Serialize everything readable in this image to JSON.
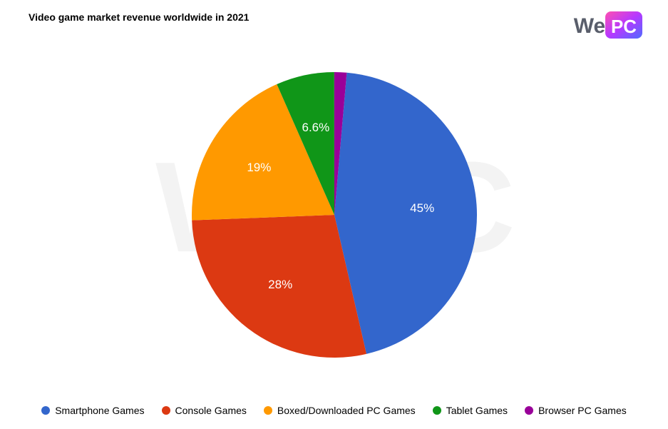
{
  "title": "Video game market revenue worldwide in 2021",
  "logo": {
    "text_we": "We",
    "text_pc": "PC",
    "gradient_start": "#ff4fb1",
    "gradient_mid": "#b638ff",
    "gradient_end": "#4f6bff",
    "text_color": "#595e6b"
  },
  "watermark": "WePC",
  "chart": {
    "type": "pie",
    "background_color": "#ffffff",
    "slices": [
      {
        "label": "Smartphone Games",
        "value": 45,
        "display": "45%",
        "color": "#3366cc"
      },
      {
        "label": "Console Games",
        "value": 28,
        "display": "28%",
        "color": "#dc3912"
      },
      {
        "label": "Boxed/Downloaded PC Games",
        "value": 19,
        "display": "19%",
        "color": "#ff9900"
      },
      {
        "label": "Tablet Games",
        "value": 6.6,
        "display": "6.6%",
        "color": "#109618"
      },
      {
        "label": "Browser PC Games",
        "value": 1.4,
        "display": "",
        "color": "#990099"
      }
    ],
    "label_fontsize": 17,
    "label_color": "#ffffff",
    "start_angle_deg": -85
  },
  "legend": {
    "fontsize": 14,
    "text_color": "#000000",
    "items": [
      {
        "label": "Smartphone Games",
        "color": "#3366cc"
      },
      {
        "label": "Console Games",
        "color": "#dc3912"
      },
      {
        "label": "Boxed/Downloaded PC Games",
        "color": "#ff9900"
      },
      {
        "label": "Tablet Games",
        "color": "#109618"
      },
      {
        "label": "Browser PC Games",
        "color": "#990099"
      }
    ]
  }
}
